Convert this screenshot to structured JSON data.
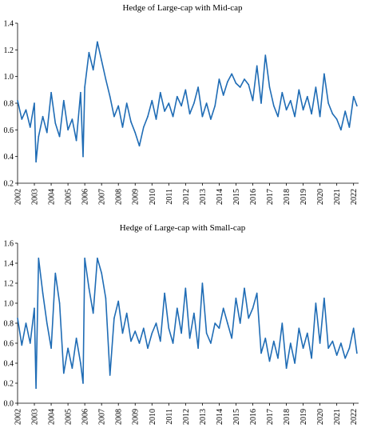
{
  "charts": [
    {
      "title": "Hedge of Large-cap with Mid-cap",
      "ylim": [
        0.2,
        1.4
      ],
      "yticks": [
        "0.2",
        "0.4",
        "0.6",
        "0.8",
        "1.0",
        "1.2",
        "1.4"
      ],
      "xlim": [
        2002,
        2022.3
      ],
      "xticks": [
        "2002",
        "2003",
        "2004",
        "2005",
        "2006",
        "2007",
        "2008",
        "2009",
        "2010",
        "2011",
        "2012",
        "2013",
        "2014",
        "2015",
        "2016",
        "2017",
        "2018",
        "2019",
        "2020",
        "2021",
        "2022"
      ]
    },
    {
      "title": "Hedge of Large-cap with Small-cap",
      "ylim": [
        0.0,
        1.6
      ],
      "yticks": [
        "0.0",
        "0.2",
        "0.4",
        "0.6",
        "0.8",
        "1.0",
        "1.2",
        "1.4",
        "1.6"
      ],
      "xlim": [
        2002,
        2022.3
      ],
      "xticks": [
        "2002",
        "2003",
        "2004",
        "2005",
        "2006",
        "2007",
        "2008",
        "2009",
        "2010",
        "2011",
        "2012",
        "2013",
        "2014",
        "2015",
        "2016",
        "2017",
        "2018",
        "2019",
        "2020",
        "2021",
        "2022"
      ]
    }
  ],
  "chart_data": [
    {
      "type": "line",
      "title": "Hedge of Large-cap with Mid-cap",
      "xlabel": "",
      "ylabel": "",
      "ylim": [
        0.2,
        1.4
      ],
      "grid": false,
      "line_color": "#1f6cb5",
      "x": [
        2002.0,
        2002.25,
        2002.5,
        2002.75,
        2003.0,
        2003.1,
        2003.25,
        2003.5,
        2003.75,
        2004.0,
        2004.25,
        2004.5,
        2004.75,
        2005.0,
        2005.25,
        2005.5,
        2005.75,
        2005.9,
        2006.0,
        2006.25,
        2006.5,
        2006.75,
        2007.0,
        2007.25,
        2007.5,
        2007.75,
        2008.0,
        2008.25,
        2008.5,
        2008.75,
        2009.0,
        2009.25,
        2009.5,
        2009.75,
        2010.0,
        2010.25,
        2010.5,
        2010.75,
        2011.0,
        2011.25,
        2011.5,
        2011.75,
        2012.0,
        2012.25,
        2012.5,
        2012.75,
        2013.0,
        2013.25,
        2013.5,
        2013.75,
        2014.0,
        2014.25,
        2014.5,
        2014.75,
        2015.0,
        2015.25,
        2015.5,
        2015.75,
        2016.0,
        2016.25,
        2016.5,
        2016.75,
        2017.0,
        2017.25,
        2017.5,
        2017.75,
        2018.0,
        2018.25,
        2018.5,
        2018.75,
        2019.0,
        2019.25,
        2019.5,
        2019.75,
        2020.0,
        2020.25,
        2020.5,
        2020.75,
        2021.0,
        2021.25,
        2021.5,
        2021.75,
        2022.0,
        2022.2
      ],
      "y": [
        0.82,
        0.68,
        0.75,
        0.62,
        0.8,
        0.36,
        0.55,
        0.7,
        0.58,
        0.88,
        0.65,
        0.55,
        0.82,
        0.6,
        0.68,
        0.52,
        0.88,
        0.4,
        0.92,
        1.18,
        1.05,
        1.26,
        1.12,
        0.98,
        0.85,
        0.7,
        0.78,
        0.62,
        0.8,
        0.66,
        0.58,
        0.48,
        0.62,
        0.7,
        0.82,
        0.68,
        0.88,
        0.74,
        0.8,
        0.7,
        0.85,
        0.78,
        0.9,
        0.72,
        0.8,
        0.92,
        0.7,
        0.8,
        0.68,
        0.78,
        0.98,
        0.86,
        0.96,
        1.02,
        0.95,
        0.92,
        0.98,
        0.94,
        0.82,
        1.08,
        0.8,
        1.16,
        0.92,
        0.78,
        0.7,
        0.88,
        0.75,
        0.82,
        0.7,
        0.9,
        0.75,
        0.85,
        0.72,
        0.92,
        0.7,
        1.02,
        0.8,
        0.72,
        0.68,
        0.6,
        0.74,
        0.62,
        0.85,
        0.78
      ]
    },
    {
      "type": "line",
      "title": "Hedge of Large-cap with Small-cap",
      "xlabel": "",
      "ylabel": "",
      "ylim": [
        0.0,
        1.6
      ],
      "grid": false,
      "line_color": "#1f6cb5",
      "x": [
        2002.0,
        2002.25,
        2002.5,
        2002.75,
        2003.0,
        2003.1,
        2003.25,
        2003.5,
        2003.75,
        2004.0,
        2004.25,
        2004.5,
        2004.75,
        2005.0,
        2005.25,
        2005.5,
        2005.75,
        2005.9,
        2006.0,
        2006.25,
        2006.5,
        2006.75,
        2007.0,
        2007.25,
        2007.5,
        2007.75,
        2008.0,
        2008.25,
        2008.5,
        2008.75,
        2009.0,
        2009.25,
        2009.5,
        2009.75,
        2010.0,
        2010.25,
        2010.5,
        2010.75,
        2011.0,
        2011.25,
        2011.5,
        2011.75,
        2012.0,
        2012.25,
        2012.5,
        2012.75,
        2013.0,
        2013.25,
        2013.5,
        2013.75,
        2014.0,
        2014.25,
        2014.5,
        2014.75,
        2015.0,
        2015.25,
        2015.5,
        2015.75,
        2016.0,
        2016.25,
        2016.5,
        2016.75,
        2017.0,
        2017.25,
        2017.5,
        2017.75,
        2018.0,
        2018.25,
        2018.5,
        2018.75,
        2019.0,
        2019.25,
        2019.5,
        2019.75,
        2020.0,
        2020.25,
        2020.5,
        2020.75,
        2021.0,
        2021.25,
        2021.5,
        2021.75,
        2022.0,
        2022.2
      ],
      "y": [
        0.85,
        0.58,
        0.8,
        0.6,
        0.95,
        0.15,
        1.45,
        1.1,
        0.8,
        0.55,
        1.3,
        1.0,
        0.3,
        0.55,
        0.35,
        0.65,
        0.4,
        0.2,
        1.45,
        1.15,
        0.9,
        1.45,
        1.3,
        1.05,
        0.28,
        0.85,
        1.02,
        0.7,
        0.9,
        0.62,
        0.72,
        0.6,
        0.75,
        0.55,
        0.7,
        0.8,
        0.62,
        1.1,
        0.75,
        0.6,
        0.95,
        0.7,
        1.15,
        0.65,
        0.9,
        0.55,
        1.2,
        0.7,
        0.6,
        0.8,
        0.75,
        0.95,
        0.8,
        0.65,
        1.05,
        0.8,
        1.15,
        0.85,
        0.95,
        1.1,
        0.5,
        0.65,
        0.42,
        0.62,
        0.45,
        0.8,
        0.35,
        0.6,
        0.4,
        0.75,
        0.55,
        0.7,
        0.45,
        1.0,
        0.6,
        1.05,
        0.55,
        0.62,
        0.48,
        0.6,
        0.45,
        0.55,
        0.75,
        0.5
      ]
    }
  ]
}
